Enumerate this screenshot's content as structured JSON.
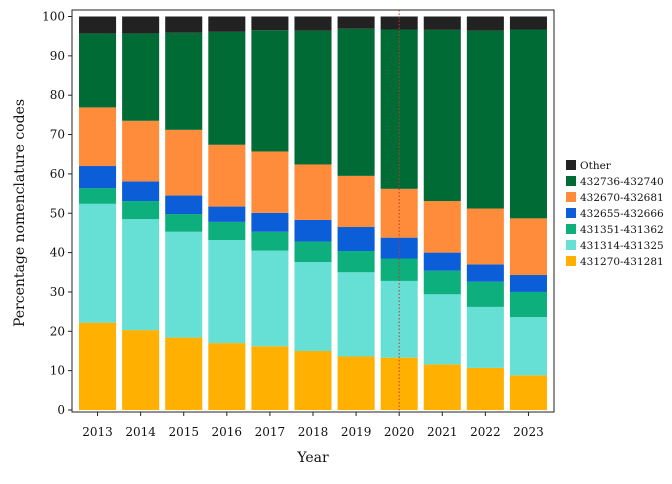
{
  "chart_data": {
    "type": "bar",
    "stacked": true,
    "categories": [
      "2013",
      "2014",
      "2015",
      "2016",
      "2017",
      "2018",
      "2019",
      "2020",
      "2021",
      "2022",
      "2023"
    ],
    "xlabel": "Year",
    "ylabel": "Percentage nomenclature codes",
    "ylim": [
      0,
      100
    ],
    "yticks": [
      0,
      10,
      20,
      30,
      40,
      50,
      60,
      70,
      80,
      90,
      100
    ],
    "grid": false,
    "legend_position": "right",
    "reference_line": {
      "x": "2020",
      "style": "dotted",
      "color": "#c0392b"
    },
    "series": [
      {
        "name": "431270-431281",
        "color": "#FFB000",
        "values": [
          22.2,
          20.3,
          18.4,
          17.0,
          16.2,
          15.0,
          13.6,
          13.3,
          11.6,
          10.7,
          8.8
        ]
      },
      {
        "name": "431314-431325",
        "color": "#66E0D5",
        "values": [
          30.2,
          28.2,
          26.9,
          26.2,
          24.3,
          22.6,
          21.4,
          19.5,
          17.8,
          15.5,
          14.8
        ]
      },
      {
        "name": "431351-431362",
        "color": "#0DB07D",
        "values": [
          4.0,
          4.6,
          4.5,
          4.6,
          4.8,
          5.2,
          5.4,
          5.7,
          6.0,
          6.4,
          6.4
        ]
      },
      {
        "name": "432655-432666",
        "color": "#0B5ED7",
        "values": [
          5.6,
          5.0,
          4.7,
          3.9,
          4.8,
          5.5,
          6.1,
          5.3,
          4.6,
          4.4,
          4.3
        ]
      },
      {
        "name": "432670-432681",
        "color": "#FF8C3A",
        "values": [
          14.9,
          15.4,
          16.7,
          15.7,
          15.6,
          14.1,
          13.0,
          12.4,
          13.1,
          14.2,
          14.4
        ]
      },
      {
        "name": "432736-432740",
        "color": "#006B35",
        "values": [
          18.8,
          22.2,
          24.7,
          28.7,
          30.8,
          34.0,
          37.4,
          40.5,
          43.5,
          45.2,
          48.0
        ]
      },
      {
        "name": "Other",
        "color": "#222222",
        "values": [
          4.3,
          4.3,
          4.1,
          3.9,
          3.5,
          3.6,
          3.1,
          3.3,
          3.4,
          3.6,
          3.3
        ]
      }
    ]
  }
}
